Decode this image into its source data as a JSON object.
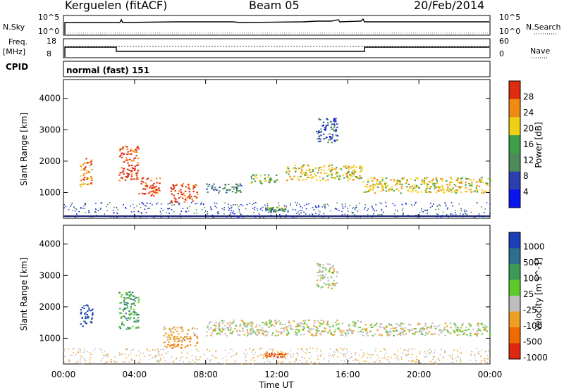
{
  "header": {
    "station": "Kerguelen (fitACF)",
    "beam": "Beam 05",
    "date": "20/Feb/2014"
  },
  "top_panels": {
    "nsky_label": "N.Sky",
    "nsky_ticks": [
      "10^5",
      "10^0"
    ],
    "nsearch_label": "N.Search",
    "nsearch_ticks": [
      "10^5",
      "10^0"
    ],
    "freq_label": "Freq.",
    "freq_unit": "[MHz]",
    "freq_ticks": [
      "18",
      "8"
    ],
    "nave_label": "Nave",
    "nave_ticks": [
      "60",
      "0"
    ],
    "cpid_label": "CPID",
    "cpid_value": "normal (fast) 151"
  },
  "chart_data": [
    {
      "type": "heatmap",
      "name": "power-panel",
      "ylabel": "Slant Range [km]",
      "ylim": [
        180,
        4600
      ],
      "y_ticks": [
        "4000",
        "3000",
        "2000",
        "1000"
      ],
      "x_range_hours": [
        0,
        24
      ],
      "colorbar_label": "Power [dB]",
      "colorbar_ticks": [
        "28",
        "24",
        "20",
        "16",
        "12",
        "8",
        "4"
      ],
      "colorbar_colors": [
        "#0a14f0",
        "#2a3fb0",
        "#4f8a5a",
        "#3da047",
        "#f0d016",
        "#f08a10",
        "#e02b10"
      ],
      "echo_regions": [
        {
          "t0": 0.9,
          "t1": 1.6,
          "r0": 1200,
          "r1": 2100,
          "level": 5
        },
        {
          "t0": 3.1,
          "t1": 4.2,
          "r0": 1400,
          "r1": 2500,
          "level": 6
        },
        {
          "t0": 4.2,
          "t1": 5.4,
          "r0": 900,
          "r1": 1500,
          "level": 6
        },
        {
          "t0": 6.0,
          "t1": 7.5,
          "r0": 700,
          "r1": 1300,
          "level": 6
        },
        {
          "t0": 8.0,
          "t1": 10.0,
          "r0": 1000,
          "r1": 1300,
          "level": 2
        },
        {
          "t0": 10.5,
          "t1": 12.0,
          "r0": 1300,
          "r1": 1600,
          "level": 3
        },
        {
          "t0": 12.5,
          "t1": 16.8,
          "r0": 1400,
          "r1": 1900,
          "level": 4
        },
        {
          "t0": 14.2,
          "t1": 15.4,
          "r0": 2600,
          "r1": 3400,
          "level": 1
        },
        {
          "t0": 16.8,
          "t1": 24.0,
          "r0": 1000,
          "r1": 1500,
          "level": 4
        },
        {
          "t0": 11.3,
          "t1": 12.5,
          "r0": 400,
          "r1": 550,
          "level": 3
        }
      ]
    },
    {
      "type": "heatmap",
      "name": "velocity-panel",
      "ylabel": "Slant Range [km]",
      "ylim": [
        180,
        4600
      ],
      "y_ticks": [
        "4000",
        "3000",
        "2000",
        "1000"
      ],
      "x_range_hours": [
        0,
        24
      ],
      "colorbar_label": "Velocity [m s^-1]",
      "colorbar_ticks": [
        "1000",
        "500",
        "100",
        "25",
        "-25",
        "-100",
        "-500",
        "-1000"
      ],
      "colorbar_colors": [
        "#1d3fb8",
        "#2d6f8e",
        "#3b9a55",
        "#5ccb2a",
        "#bebebe",
        "#f0a020",
        "#f06a00",
        "#e02810"
      ],
      "echo_regions": [
        {
          "t0": 0.9,
          "t1": 1.6,
          "r0": 1400,
          "r1": 2100,
          "level": 0
        },
        {
          "t0": 3.1,
          "t1": 4.2,
          "r0": 1300,
          "r1": 2500,
          "level": 2
        },
        {
          "t0": 5.6,
          "t1": 7.5,
          "r0": 700,
          "r1": 1400,
          "level": 5
        },
        {
          "t0": 8.0,
          "t1": 16.8,
          "r0": 1100,
          "r1": 1600,
          "level": 4
        },
        {
          "t0": 14.2,
          "t1": 15.4,
          "r0": 2600,
          "r1": 3400,
          "level": 4
        },
        {
          "t0": 16.8,
          "t1": 24.0,
          "r0": 1100,
          "r1": 1500,
          "level": 4
        },
        {
          "t0": 11.3,
          "t1": 12.5,
          "r0": 400,
          "r1": 550,
          "level": 6
        }
      ]
    }
  ],
  "x_axis": {
    "label": "Time UT",
    "ticks": [
      "00:00",
      "04:00",
      "08:00",
      "12:00",
      "16:00",
      "20:00",
      "00:00"
    ]
  }
}
